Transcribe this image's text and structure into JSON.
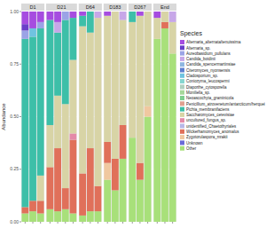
{
  "chart_data": {
    "type": "bar",
    "stacked": true,
    "y_label": "Abundance",
    "legend_title": "Species",
    "tick_labels": "y",
    "categories": [
      null,
      null,
      null,
      null,
      null,
      null,
      null,
      null,
      null,
      null,
      null,
      null,
      null,
      null,
      null,
      null,
      null,
      null,
      null
    ],
    "facets": [
      "D1",
      "D1",
      "D1",
      "D21",
      "D21",
      "D21",
      "D21",
      "D64",
      "D64",
      "D64",
      "D183",
      "D183",
      "D183",
      "D267",
      "D267",
      "D267",
      "End",
      "End",
      "End"
    ],
    "ylim": [
      0,
      1
    ],
    "yticks": [
      {
        "value": 0,
        "label": "0.00"
      },
      {
        "value": 0.25,
        "label": "0.25"
      },
      {
        "value": 0.5,
        "label": "0.50"
      },
      {
        "value": 0.75,
        "label": "0.75"
      },
      {
        "value": 1,
        "label": "1.00"
      }
    ],
    "series": [
      {
        "name": "Alternaria_alternata/tenuissima",
        "color": "#a64ce0",
        "values": [
          0.06,
          0.08,
          0.05,
          0.04,
          0.05,
          0,
          0.03,
          0.02,
          0,
          0,
          0.02,
          0,
          0,
          0,
          0.02,
          0,
          0.03,
          0,
          0
        ]
      },
      {
        "name": "Alternaria_sp.",
        "color": "#6a3fc9",
        "values": [
          0.03,
          0,
          0,
          0,
          0,
          0,
          0,
          0,
          0,
          0,
          0,
          0,
          0,
          0,
          0,
          0,
          0,
          0,
          0
        ]
      },
      {
        "name": "Aureobasidium_pullulans",
        "color": "#9ba3e6",
        "values": [
          0.04,
          0,
          0.03,
          0,
          0,
          0.04,
          0,
          0,
          0,
          0,
          0,
          0,
          0,
          0,
          0,
          0,
          0,
          0,
          0
        ]
      },
      {
        "name": "Candida_boidinii",
        "color": "#c7a7e8",
        "values": [
          0,
          0,
          0,
          0,
          0.05,
          0,
          0,
          0,
          0,
          0.03,
          0,
          0,
          0.04,
          0,
          0,
          0,
          0,
          0,
          0.05
        ]
      },
      {
        "name": "Candida_spencermartinsiae",
        "color": "#8fb6e0",
        "values": [
          0,
          0,
          0,
          0,
          0,
          0,
          0,
          0,
          0,
          0,
          0,
          0,
          0,
          0,
          0,
          0,
          0,
          0,
          0
        ]
      },
      {
        "name": "Citeromyces_nyonsensis",
        "color": "#5f7fd0",
        "values": [
          0,
          0,
          0,
          0,
          0,
          0,
          0,
          0,
          0,
          0,
          0,
          0,
          0,
          0,
          0,
          0,
          0,
          0,
          0
        ]
      },
      {
        "name": "Cladosporium_sp.",
        "color": "#6fc3e0",
        "values": [
          0,
          0.04,
          0,
          0,
          0,
          0,
          0,
          0,
          0,
          0,
          0,
          0,
          0,
          0,
          0,
          0,
          0,
          0,
          0
        ]
      },
      {
        "name": "Coniozyma_leucospermi",
        "color": "#86d6d0",
        "values": [
          0,
          0,
          0,
          0,
          0,
          0,
          0,
          0,
          0,
          0,
          0,
          0,
          0,
          0,
          0,
          0,
          0,
          0,
          0
        ]
      },
      {
        "name": "Diaporthe_cytosporella",
        "color": "#b0d0c0",
        "values": [
          0,
          0,
          0,
          0,
          0,
          0,
          0,
          0,
          0,
          0,
          0,
          0,
          0,
          0,
          0,
          0,
          0,
          0,
          0
        ]
      },
      {
        "name": "Moniliella_sp.",
        "color": "#a6d89a",
        "values": [
          0,
          0,
          0,
          0,
          0,
          0,
          0,
          0,
          0,
          0,
          0,
          0,
          0,
          0,
          0,
          0,
          0,
          0,
          0
        ]
      },
      {
        "name": "Neoascochyta_graminicola",
        "color": "#7fcf8f",
        "values": [
          0,
          0,
          0,
          0,
          0,
          0,
          0,
          0,
          0,
          0,
          0,
          0,
          0,
          0,
          0,
          0,
          0,
          0,
          0
        ]
      },
      {
        "name": "Penicillium_atrovenetum/antarcticum/herquei",
        "color": "#e0a090",
        "values": [
          0,
          0,
          0,
          0,
          0,
          0,
          0,
          0,
          0,
          0,
          0,
          0,
          0,
          0,
          0,
          0,
          0,
          0,
          0
        ]
      },
      {
        "name": "Pichia_membranifaciens",
        "color": "#3dbfa8",
        "values": [
          0.8,
          0.78,
          0.7,
          0.5,
          0.3,
          0.4,
          0.2,
          0.05,
          0.1,
          0,
          0,
          0,
          0,
          0.05,
          0,
          0,
          0,
          0,
          0
        ]
      },
      {
        "name": "Saccharomyces_cerevisiae",
        "color": "#d8d4a6",
        "values": [
          0,
          0,
          0.12,
          0.2,
          0.25,
          0.4,
          0.35,
          0.7,
          0.55,
          0.8,
          0.6,
          0.7,
          0.5,
          0.55,
          0.7,
          0.45,
          0.1,
          0.05,
          0.15
        ]
      },
      {
        "name": "uncultured_fungus_sp.",
        "color": "#e48aa8",
        "values": [
          0,
          0,
          0,
          0,
          0,
          0,
          0.03,
          0,
          0,
          0,
          0,
          0,
          0,
          0,
          0,
          0,
          0,
          0,
          0
        ]
      },
      {
        "name": "unidentified_Chaetothyriales",
        "color": "#b8b8e8",
        "values": [
          0,
          0,
          0,
          0,
          0,
          0,
          0,
          0,
          0,
          0,
          0,
          0,
          0,
          0,
          0,
          0,
          0,
          0,
          0
        ]
      },
      {
        "name": "Wickerhamomyces_anomalus",
        "color": "#e0705a",
        "values": [
          0.03,
          0.05,
          0.06,
          0.2,
          0.3,
          0.1,
          0.35,
          0.2,
          0.3,
          0.12,
          0.1,
          0.15,
          0.16,
          0,
          0.08,
          0,
          0,
          0.03,
          0
        ]
      },
      {
        "name": "Zygotorulaspora_mrakii",
        "color": "#f0c8a0",
        "values": [
          0,
          0,
          0,
          0,
          0,
          0,
          0,
          0,
          0,
          0,
          0.08,
          0,
          0,
          0,
          0,
          0.05,
          0,
          0,
          0
        ]
      },
      {
        "name": "Unknown",
        "color": "#6a6ad8",
        "values": [
          0,
          0,
          0,
          0,
          0,
          0,
          0,
          0,
          0,
          0,
          0,
          0,
          0,
          0,
          0,
          0,
          0,
          0,
          0
        ]
      },
      {
        "name": "Other",
        "color": "#a8e07a",
        "values": [
          0.04,
          0.05,
          0.04,
          0.06,
          0.05,
          0.06,
          0.04,
          0.03,
          0.05,
          0.05,
          0.2,
          0.15,
          0.3,
          0.4,
          0.2,
          0.5,
          0.87,
          0.92,
          0.8
        ]
      }
    ]
  }
}
